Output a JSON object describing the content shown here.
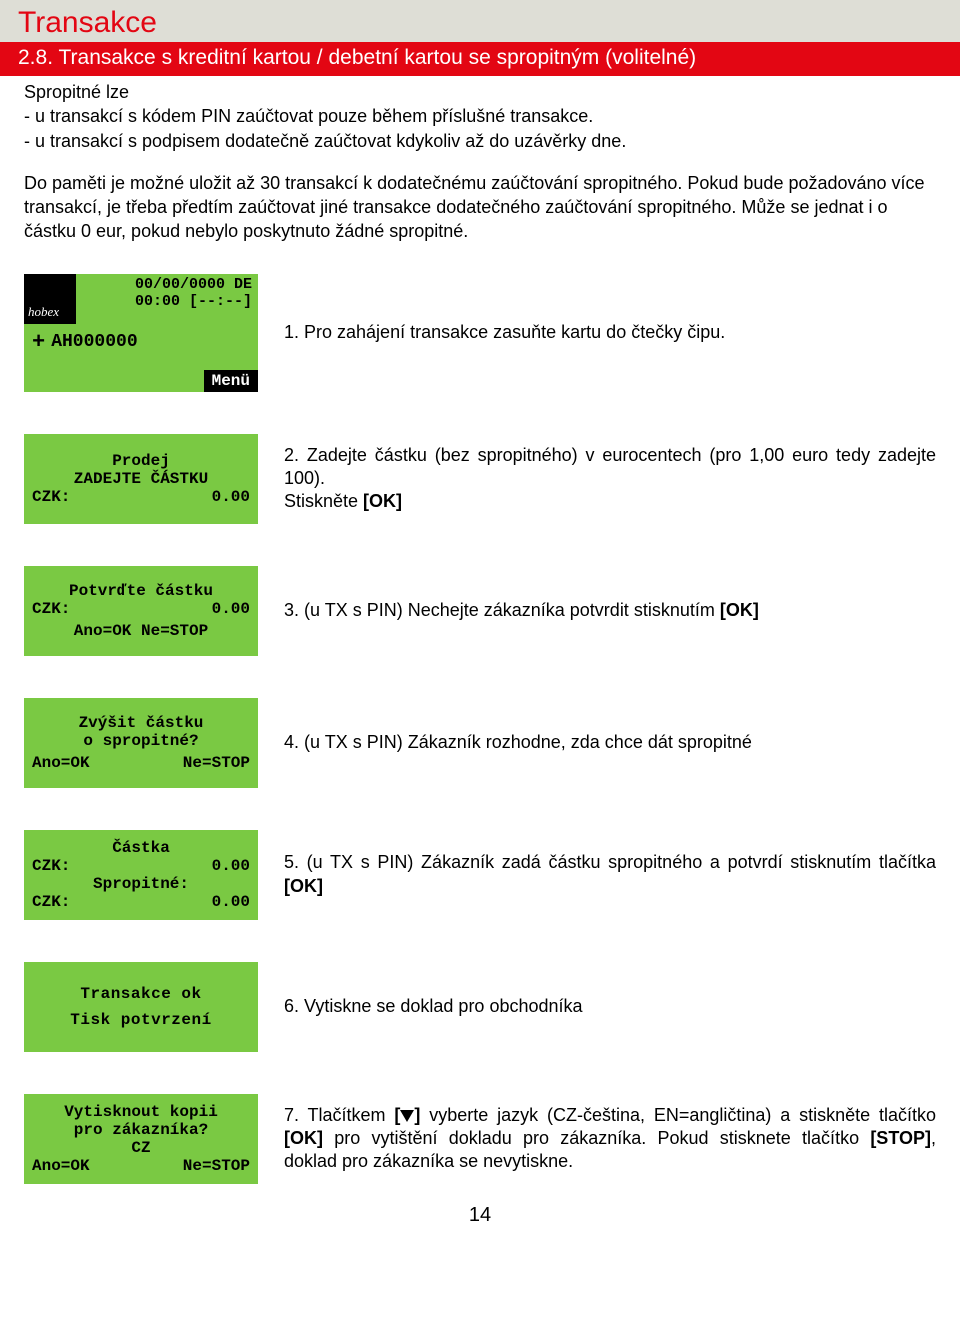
{
  "header": {
    "title": "Transakce",
    "subtitle": "2.8. Transakce s kreditní kartou /  debetní kartou se spropitným (volitelné)"
  },
  "intro": {
    "lead": "Spropitné lze",
    "bullet1": "- u transakcí s kódem PIN zaúčtovat pouze během příslušné transakce.",
    "bullet2": "- u transakcí s podpisem dodatečně zaúčtovat kdykoliv až do uzávěrky dne.",
    "para2": "Do paměti je možné uložit až 30 transakcí k dodatečnému zaúčtování spropitného. Pokud bude požadováno více transakcí, je třeba předtím zaúčtovat jiné transakce dodatečného zaúčtování spropitného. Může se jednat i o částku 0 eur, pokud nebylo poskytnuto žádné spropitné."
  },
  "screens": {
    "s1": {
      "logo": "hobex",
      "date": "00/00/0000 DE",
      "time": "00:00 [--:--]",
      "code": "AH000000",
      "menu": "Menü"
    },
    "s2": {
      "l1": "Prodej",
      "l2": "ZADEJTE ČÁSTKU",
      "cur": "CZK:",
      "amt": "0.00"
    },
    "s3": {
      "l1": "Potvrďte částku",
      "cur": "CZK:",
      "amt": "0.00",
      "l3": "Ano=OK Ne=STOP"
    },
    "s4": {
      "l1": "Zvýšit částku",
      "l2": "o spropitné?",
      "left": "Ano=OK",
      "right": "Ne=STOP"
    },
    "s5": {
      "l1": "Částka",
      "cur": "CZK:",
      "amt": "0.00",
      "l3": "Spropitné:",
      "cur2": "CZK:",
      "amt2": "0.00"
    },
    "s6": {
      "l1": "Transakce ok",
      "l2": "Tisk potvrzení"
    },
    "s7": {
      "l1": "Vytisknout kopii",
      "l2": "pro zákazníka?",
      "l3": "CZ",
      "left": "Ano=OK",
      "right": "Ne=STOP"
    }
  },
  "steps": {
    "t1": "1. Pro zahájení transakce zasuňte kartu do čtečky čipu.",
    "t2a": "2. Zadejte částku (bez spropitného) v eurocentech (pro 1,00 euro tedy zadejte 100).",
    "t2b": "Stiskněte ",
    "t2b_bold": "[OK]",
    "t3a": "3. (u TX s PIN) Nechejte zákazníka potvrdit stisknutím ",
    "t3b": "[OK]",
    "t4": "4. (u TX s PIN) Zákazník rozhodne, zda chce dát spropitné",
    "t5a": "5. (u TX s PIN) Zákazník zadá částku spropitného a potvrdí stisknutím tlačítka ",
    "t5b": "[OK]",
    "t6": "6. Vytiskne se doklad pro obchodníka",
    "t7a": "7. Tlačítkem ",
    "t7b": " vyberte jazyk (CZ-čeština, EN=angličtina) a stiskněte tlačítko ",
    "t7c": "[OK]",
    "t7d": " pro vytištění dokladu pro zákazníka. Pokud stisknete tlačítko ",
    "t7e": "[STOP]",
    "t7f": ", doklad pro zákazníka se nevytiskne."
  },
  "page_number": "14",
  "colors": {
    "red": "#e30613",
    "green": "#7ac943",
    "header_bg": "#deded6"
  }
}
